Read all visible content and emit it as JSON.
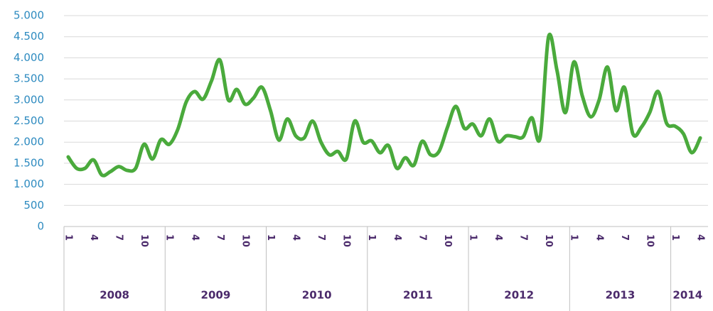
{
  "chart_data": {
    "type": "line",
    "categories": [
      "1",
      null,
      null,
      "4",
      null,
      null,
      "7",
      null,
      null,
      "10",
      null,
      null,
      "1",
      null,
      null,
      "4",
      null,
      null,
      "7",
      null,
      null,
      "10",
      null,
      null,
      "1",
      null,
      null,
      "4",
      null,
      null,
      "7",
      null,
      null,
      "10",
      null,
      null,
      "1",
      null,
      null,
      "4",
      null,
      null,
      "7",
      null,
      null,
      "10",
      null,
      null,
      "1",
      null,
      null,
      "4",
      null,
      null,
      "7",
      null,
      null,
      "10",
      null,
      null,
      "1",
      null,
      null,
      "4",
      null,
      null,
      "7",
      null,
      null,
      "10",
      null,
      null,
      "1",
      null,
      null,
      "4"
    ],
    "groups": [
      "2008",
      "2009",
      "2010",
      "2011",
      "2012",
      "2013",
      "2014"
    ],
    "series": [
      {
        "color": "#4aaa3c",
        "values": [
          1650,
          1380,
          1380,
          1580,
          1220,
          1300,
          1420,
          1330,
          1380,
          1950,
          1600,
          2060,
          1950,
          2300,
          2950,
          3200,
          3020,
          3450,
          3950,
          3000,
          3250,
          2900,
          3050,
          3300,
          2750,
          2050,
          2550,
          2150,
          2100,
          2500,
          2000,
          1700,
          1780,
          1600,
          2500,
          2000,
          2030,
          1750,
          1920,
          1380,
          1630,
          1450,
          2020,
          1700,
          1780,
          2350,
          2850,
          2330,
          2430,
          2150,
          2550,
          2020,
          2150,
          2130,
          2130,
          2580,
          2100,
          4500,
          3700,
          2700,
          3900,
          3100,
          2600,
          3000,
          3780,
          2750,
          3300,
          2200,
          2350,
          2700,
          3200,
          2450,
          2380,
          2200,
          1750,
          2100
        ]
      }
    ],
    "ylim": [
      0,
      5000
    ],
    "yticks": [
      0,
      500,
      {
        "value": 1000,
        "label": "1.000"
      },
      {
        "value": 1500,
        "label": "1.500"
      },
      {
        "value": 2000,
        "label": "2.000"
      },
      {
        "value": 2500,
        "label": "2.500"
      },
      {
        "value": 3000,
        "label": "3.000"
      },
      {
        "value": 3500,
        "label": "3.500"
      },
      {
        "value": 4000,
        "label": "4.000"
      },
      {
        "value": 4500,
        "label": "4.500"
      },
      {
        "value": 5000,
        "label": "5.000"
      }
    ],
    "grid": true
  }
}
